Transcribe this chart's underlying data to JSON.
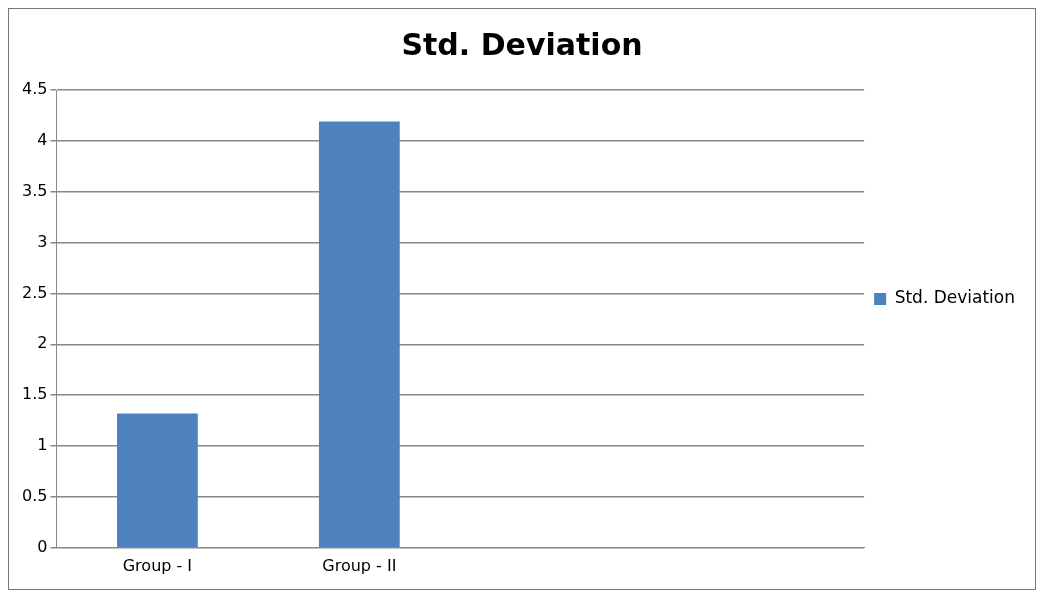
{
  "chart_data": {
    "type": "bar",
    "title": "Std. Deviation",
    "categories": [
      "Group - I",
      "Group - II",
      null,
      null
    ],
    "series": [
      {
        "name": "Std. Deviation",
        "color": "#4f81bd",
        "values": [
          1.32,
          4.19,
          null,
          null
        ]
      }
    ],
    "ylim": [
      0,
      4.5
    ],
    "yticks": [
      0,
      0.5,
      1,
      1.5,
      2,
      2.5,
      3,
      3.5,
      4,
      4.5
    ],
    "grid": "y",
    "legend": "right"
  }
}
